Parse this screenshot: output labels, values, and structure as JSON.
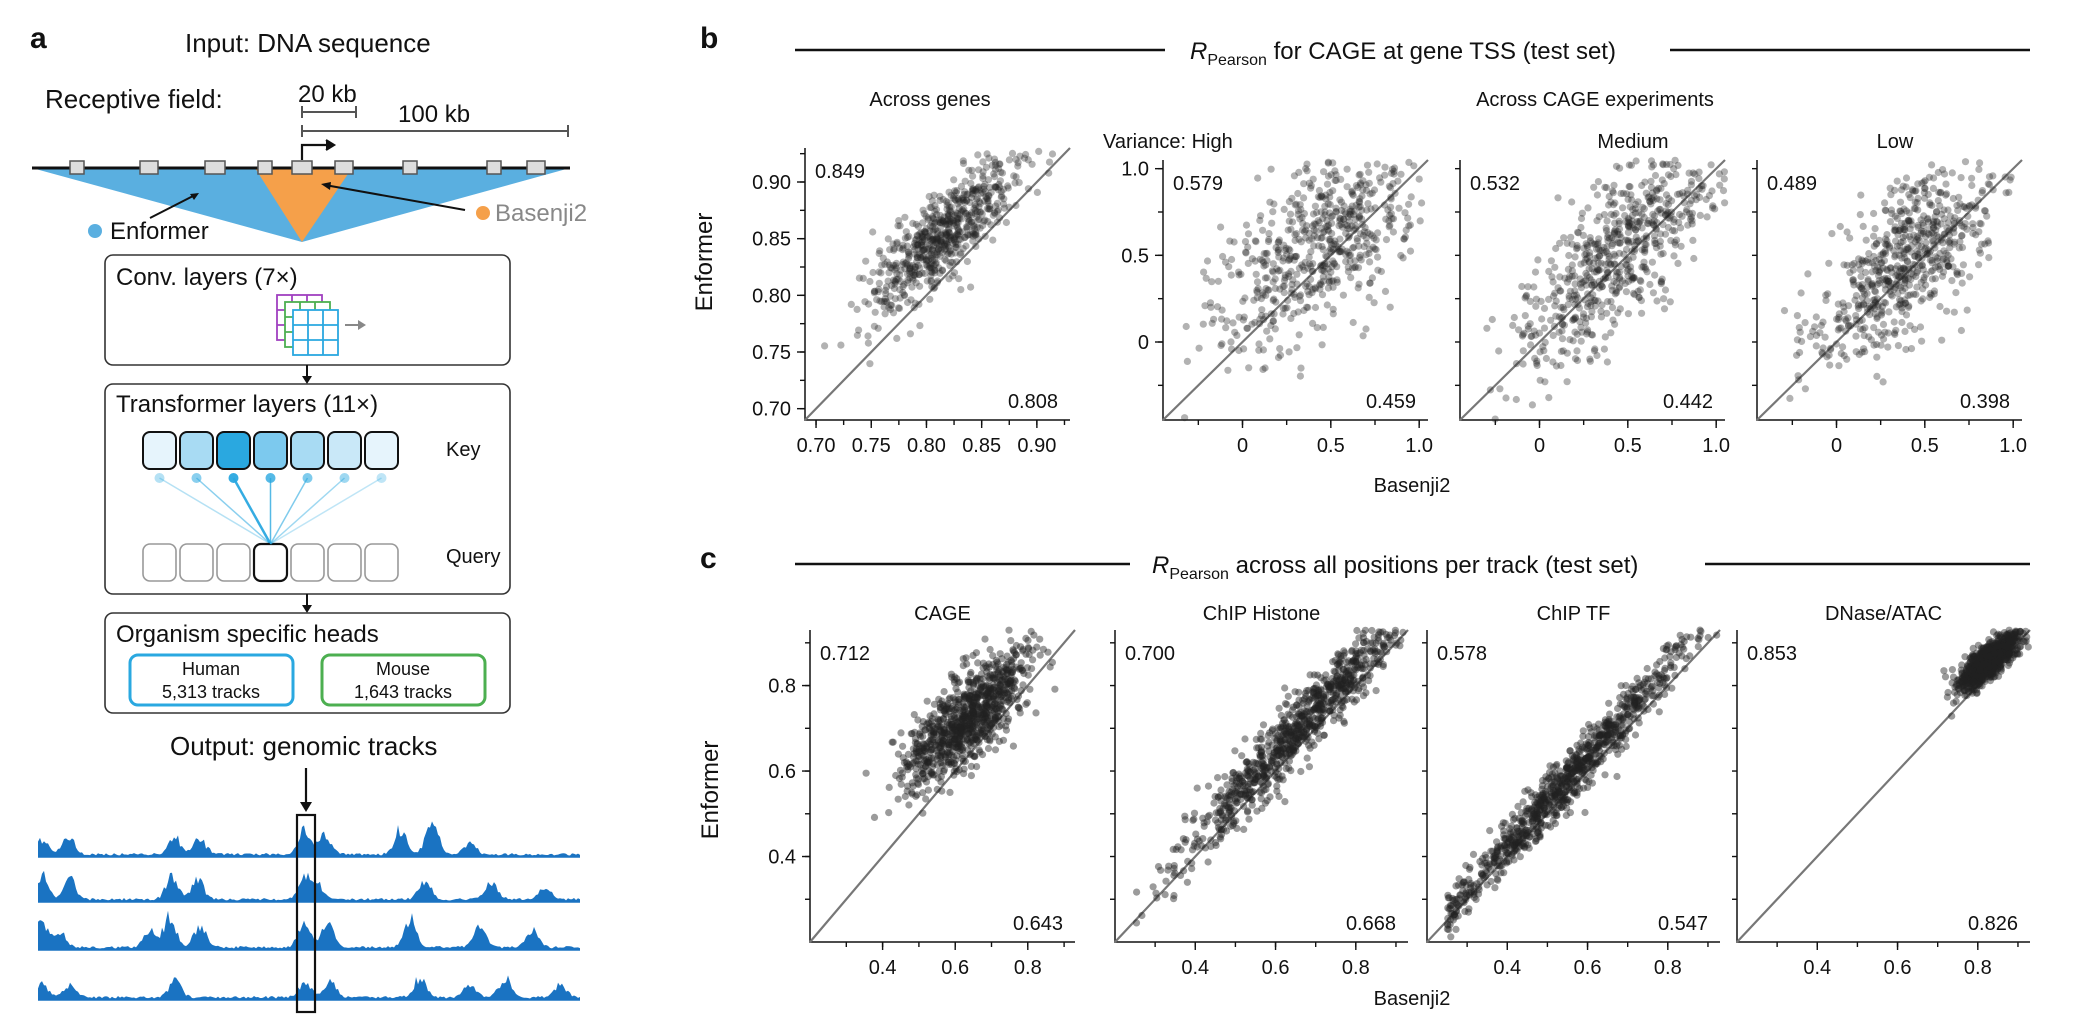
{
  "panel_a": {
    "label": "a",
    "input_title": "Input: DNA sequence",
    "receptive_field_label": "Receptive field:",
    "scale_20kb": "20 kb",
    "scale_100kb": "100 kb",
    "enformer_label": "Enformer",
    "basenji2_label": "Basenji2",
    "conv_title": "Conv. layers (7×)",
    "transformer_title": "Transformer layers (11×)",
    "key_label": "Key",
    "query_label": "Query",
    "heads_title": "Organism specific heads",
    "human_label": "Human",
    "human_tracks": "5,313 tracks",
    "mouse_label": "Mouse",
    "mouse_tracks": "1,643 tracks",
    "output_title": "Output: genomic tracks",
    "colors": {
      "enformer": "#5aafe0",
      "basenji2": "#f5a04a",
      "human": "#2aa8e0",
      "mouse": "#4caf50",
      "track": "#1a73c2"
    }
  },
  "panel_b": {
    "label": "b",
    "header_R": "R",
    "header_sub": "Pearson",
    "header_rest": " for CAGE at gene TSS (test set)",
    "across_genes": "Across genes",
    "across_cage": "Across CAGE experiments",
    "variance_high": "Variance: High",
    "medium": "Medium",
    "low": "Low",
    "ylabel": "Enformer",
    "xlabel": "Basenji2"
  },
  "panel_c": {
    "label": "c",
    "header_R": "R",
    "header_sub": "Pearson",
    "header_rest": " across all positions per track (test set)",
    "ylabel": "Enformer",
    "xlabel": "Basenji2"
  },
  "chart_data": [
    {
      "type": "scatter",
      "title": "Across genes",
      "xlim": [
        0.69,
        0.93
      ],
      "ylim": [
        0.69,
        0.93
      ],
      "xticks": [
        "0.70",
        "0.75",
        "0.80",
        "0.85",
        "0.90"
      ],
      "yticks": [
        "0.70",
        "0.75",
        "0.80",
        "0.85",
        "0.90"
      ],
      "enformer_value": "0.849",
      "basenji2_value": "0.808",
      "point_cloud": {
        "x_center": 0.815,
        "y_center": 0.853,
        "x_spread": 0.035,
        "y_spread": 0.02,
        "slope": 0.85,
        "min_x": 0.7
      }
    },
    {
      "type": "scatter",
      "title": "Variance: High",
      "xlim": [
        -0.45,
        1.05
      ],
      "ylim": [
        -0.45,
        1.05
      ],
      "xticks": [
        "0",
        "0.5",
        "1.0"
      ],
      "yticks": [
        "0",
        "0.5",
        "1.0"
      ],
      "enformer_value": "0.579",
      "basenji2_value": "0.459",
      "point_cloud": {
        "x_center": 0.45,
        "y_center": 0.6,
        "x_spread": 0.3,
        "y_spread": 0.25,
        "slope": 0.7,
        "min_x": -0.35
      }
    },
    {
      "type": "scatter",
      "title": "Medium",
      "xlim": [
        -0.45,
        1.05
      ],
      "ylim": [
        -0.45,
        1.05
      ],
      "xticks": [
        "0",
        "0.5",
        "1.0"
      ],
      "yticks": [],
      "enformer_value": "0.532",
      "basenji2_value": "0.442",
      "point_cloud": {
        "x_center": 0.45,
        "y_center": 0.52,
        "x_spread": 0.28,
        "y_spread": 0.22,
        "slope": 0.8,
        "min_x": -0.3
      }
    },
    {
      "type": "scatter",
      "title": "Low",
      "xlim": [
        -0.45,
        1.05
      ],
      "ylim": [
        -0.45,
        1.05
      ],
      "xticks": [
        "0",
        "0.5",
        "1.0"
      ],
      "yticks": [],
      "enformer_value": "0.489",
      "basenji2_value": "0.398",
      "point_cloud": {
        "x_center": 0.4,
        "y_center": 0.48,
        "x_spread": 0.25,
        "y_spread": 0.22,
        "slope": 0.75,
        "min_x": -0.35
      }
    },
    {
      "type": "scatter",
      "title": "CAGE",
      "xlim": [
        0.2,
        0.93
      ],
      "ylim": [
        0.2,
        0.93
      ],
      "xticks": [
        "0.4",
        "0.6",
        "0.8"
      ],
      "yticks": [
        "0.4",
        "0.6",
        "0.8"
      ],
      "enformer_value": "0.712",
      "basenji2_value": "0.643",
      "point_cloud": {
        "x_center": 0.63,
        "y_center": 0.72,
        "x_spread": 0.09,
        "y_spread": 0.05,
        "slope": 0.7,
        "min_x": 0.35
      }
    },
    {
      "type": "scatter",
      "title": "ChIP Histone",
      "xlim": [
        0.2,
        0.93
      ],
      "ylim": [
        0.2,
        0.93
      ],
      "xticks": [
        "0.4",
        "0.6",
        "0.8"
      ],
      "yticks": [],
      "enformer_value": "0.700",
      "basenji2_value": "0.668",
      "point_cloud": {
        "x_center": 0.66,
        "y_center": 0.7,
        "x_spread": 0.15,
        "y_spread": 0.04,
        "slope": 1.0,
        "min_x": 0.25
      }
    },
    {
      "type": "scatter",
      "title": "ChIP TF",
      "xlim": [
        0.2,
        0.93
      ],
      "ylim": [
        0.2,
        0.93
      ],
      "xticks": [
        "0.4",
        "0.6",
        "0.8"
      ],
      "yticks": [],
      "enformer_value": "0.578",
      "basenji2_value": "0.547",
      "point_cloud": {
        "x_center": 0.55,
        "y_center": 0.58,
        "x_spread": 0.16,
        "y_spread": 0.03,
        "slope": 1.05,
        "min_x": 0.25
      }
    },
    {
      "type": "scatter",
      "title": "DNase/ATAC",
      "xlim": [
        0.2,
        0.93
      ],
      "ylim": [
        0.2,
        0.93
      ],
      "xticks": [
        "0.4",
        "0.6",
        "0.8"
      ],
      "yticks": [],
      "enformer_value": "0.853",
      "basenji2_value": "0.826",
      "point_cloud": {
        "x_center": 0.83,
        "y_center": 0.86,
        "x_spread": 0.04,
        "y_spread": 0.02,
        "slope": 0.7,
        "min_x": 0.4
      }
    }
  ]
}
